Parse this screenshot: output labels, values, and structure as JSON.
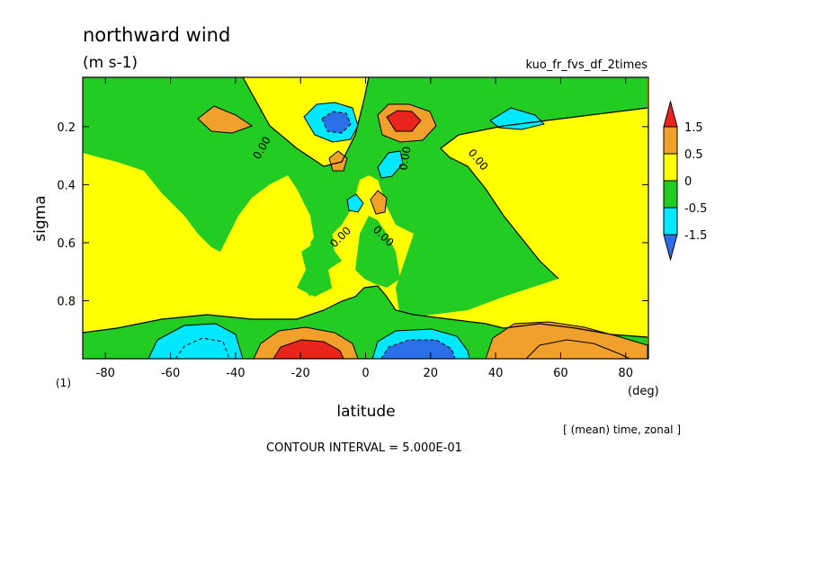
{
  "chart_data": {
    "type": "heatmap",
    "title": "northward wind",
    "units": "(m s-1)",
    "experiment": "kuo_fr_fvs_df_2times",
    "xlabel": "latitude",
    "x_unit": "(deg)",
    "ylabel": "sigma",
    "xlim": [
      -87,
      87
    ],
    "ylim": [
      1.0,
      0.03
    ],
    "x_ticks": [
      "-80",
      "-60",
      "-40",
      "-20",
      "0",
      "20",
      "40",
      "60",
      "80"
    ],
    "y_ticks": [
      "0.2",
      "0.4",
      "0.6",
      "0.8"
    ],
    "axis_note": "(1)",
    "averaging": "[ (mean) time, zonal ]",
    "contour_interval": "CONTOUR INTERVAL = 5.000E-01",
    "contour_labels": [
      "0.00",
      "0.00",
      "0.00",
      "0.00",
      "0.00",
      "0.00"
    ],
    "legend": {
      "levels": [
        "1.5",
        "0.5",
        "0",
        "-0.5",
        "-1.5"
      ],
      "colors": [
        "#e8241c",
        "#f2a02c",
        "#ffff00",
        "#22cc22",
        "#00e8ff",
        "#2b6fe8"
      ]
    },
    "fills": {
      "positive_strong": "#e8241c",
      "positive": "#f2a02c",
      "weak_positive": "#ffff00",
      "weak_negative": "#22cc22",
      "negative": "#00e8ff",
      "negative_strong": "#2b6fe8"
    }
  }
}
